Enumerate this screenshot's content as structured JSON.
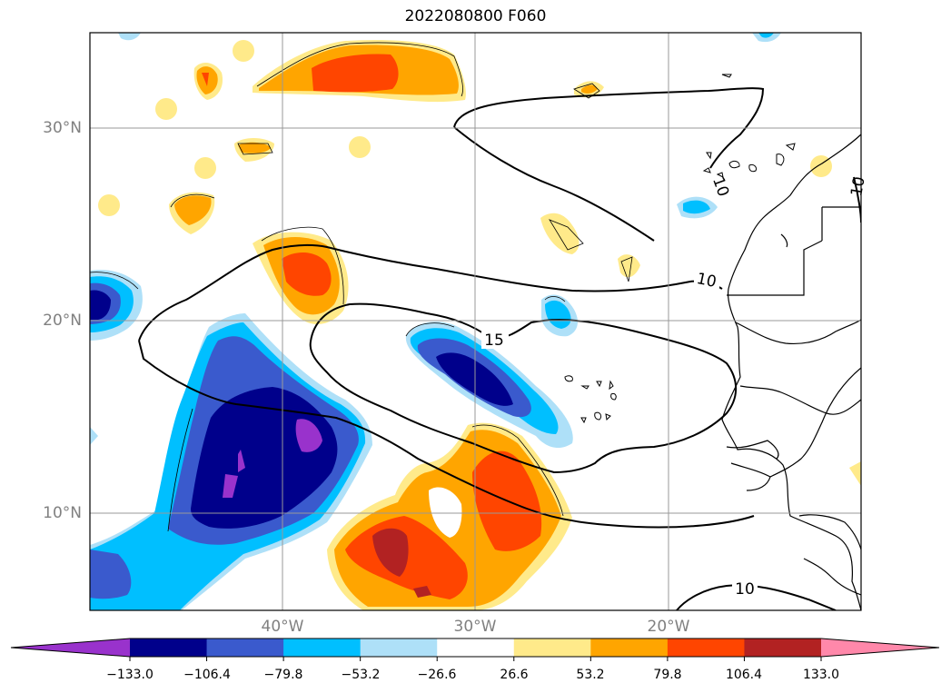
{
  "title": "2022080800 F060",
  "map": {
    "lat_labels": [
      "30°N",
      "20°N",
      "10°N"
    ],
    "lon_labels": [
      "40°W",
      "30°W",
      "20°W"
    ],
    "contour_labels": [
      "15",
      "10",
      "10",
      "10",
      "10"
    ]
  },
  "colorbar": {
    "ticks": [
      "−133.0",
      "−106.4",
      "−79.8",
      "−53.2",
      "−26.6",
      "26.6",
      "53.2",
      "79.8",
      "106.4",
      "133.0"
    ],
    "colors": [
      "#9932cc",
      "#00008b",
      "#3a5acd",
      "#00bfff",
      "#aee0f8",
      "#ffffff",
      "#ffea8a",
      "#ffa500",
      "#ff4500",
      "#b22222",
      "#ff88aa"
    ]
  }
}
